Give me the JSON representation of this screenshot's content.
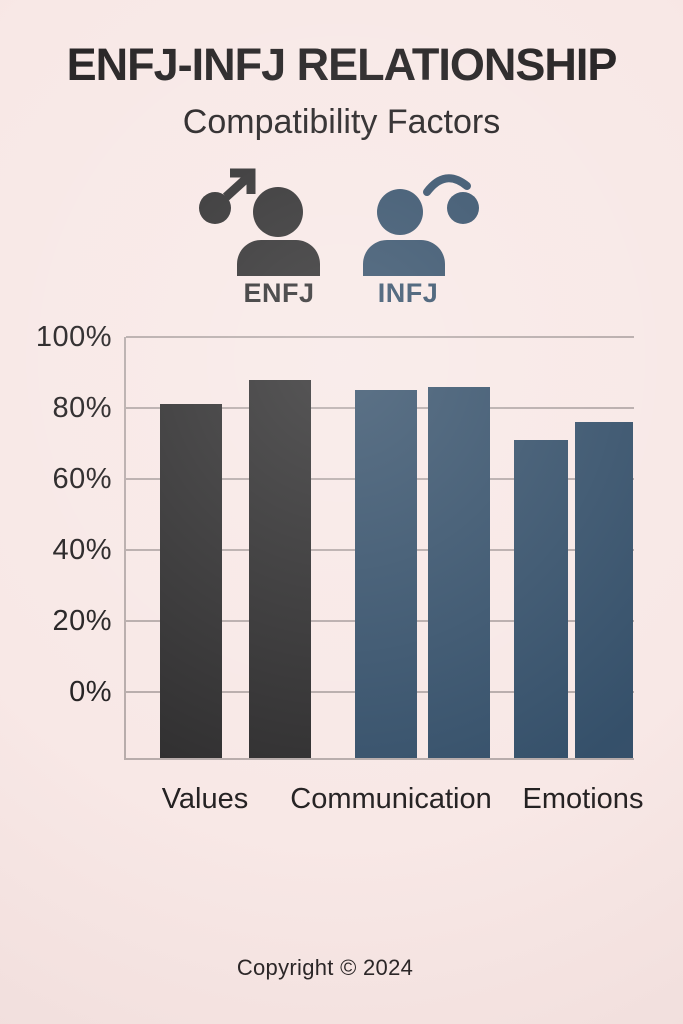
{
  "header": {
    "title": "ENFJ-INFJ RELATIONSHIP",
    "subtitle": "Compatibility Factors"
  },
  "legend": {
    "items": [
      {
        "label": "ENFJ",
        "color": "#2e2d2e",
        "icon": "male-symbol-person-icon"
      },
      {
        "label": "INFJ",
        "color": "#35506a",
        "icon": "person-with-orb-icon"
      }
    ]
  },
  "chart_data": {
    "type": "bar",
    "title": "Compatibility Factors",
    "categories": [
      "Values",
      "Communication",
      "Emotions"
    ],
    "series": [
      {
        "name": "ENFJ",
        "values": [
          81,
          85,
          71
        ]
      },
      {
        "name": "INFJ",
        "values": [
          88,
          86,
          76
        ]
      }
    ],
    "unit": "%",
    "ylim": [
      0,
      100
    ],
    "yticks": [
      {
        "value": 100,
        "label": "100%"
      },
      {
        "value": 80,
        "label": "80%"
      },
      {
        "value": 60,
        "label": "60%"
      },
      {
        "value": 40,
        "label": "40%"
      },
      {
        "value": 20,
        "label": "20%"
      },
      {
        "value": 0,
        "label": "0%"
      }
    ],
    "grid": true,
    "legend_position": "above-chart",
    "bar_colors_by_category": [
      "#2e2d2e",
      "#35506a",
      "#35506a"
    ]
  },
  "colors": {
    "background": "#f8e8e6",
    "enfj": "#2e2d2e",
    "infj": "#35506a",
    "grid": "#b7abaa",
    "text": "#242122"
  },
  "footer": {
    "text": "Copyright © 2024"
  }
}
